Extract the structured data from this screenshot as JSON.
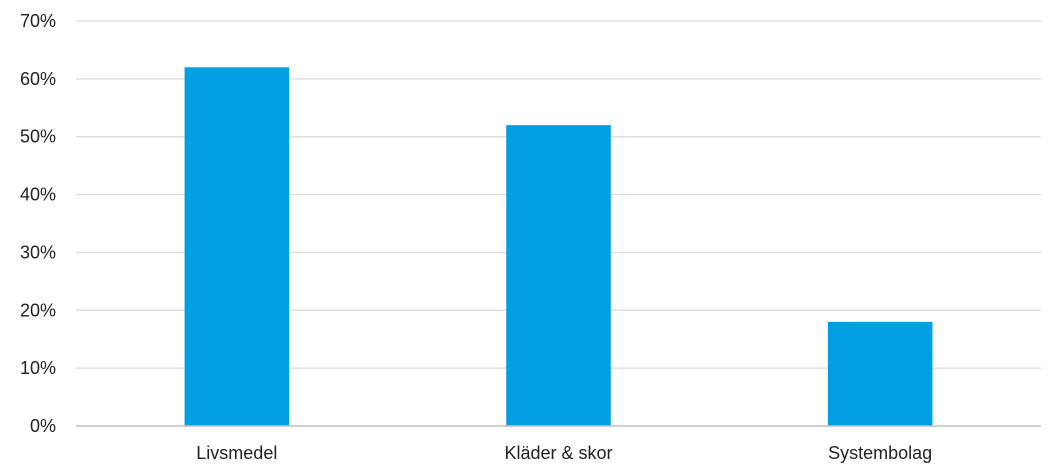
{
  "chart_data": {
    "type": "bar",
    "categories": [
      "Livsmedel",
      "Kläder & skor",
      "Systembolag"
    ],
    "values": [
      62,
      52,
      18
    ],
    "ylim": [
      0,
      70
    ],
    "y_ticks": [
      0,
      10,
      20,
      30,
      40,
      50,
      60,
      70
    ],
    "y_tick_suffix": "%",
    "y_tick_labels": [
      "0%",
      "10%",
      "20%",
      "30%",
      "40%",
      "50%",
      "60%",
      "70%"
    ],
    "title": "",
    "xlabel": "",
    "ylabel": "",
    "grid": true,
    "legend": "none",
    "bar_color": "#009FE3",
    "grid_color": "#D9D9D9",
    "axis_color": "#BFBFBF"
  }
}
